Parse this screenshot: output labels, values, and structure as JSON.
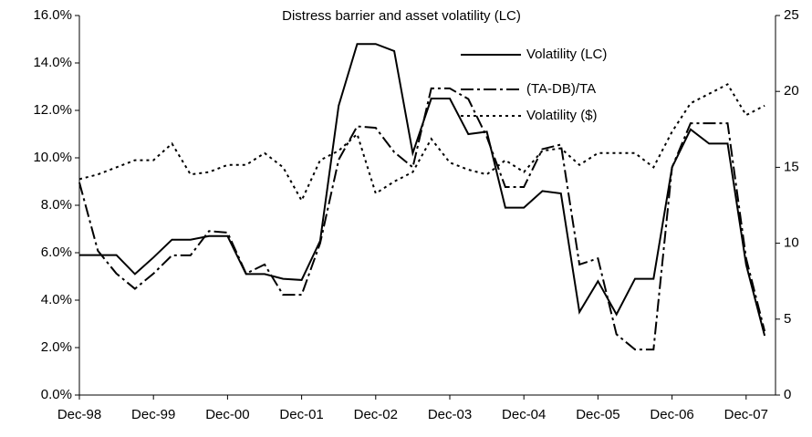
{
  "chart_data": {
    "type": "line",
    "title": "Distress barrier and asset volatility (LC)",
    "categories": [
      "Dec-98",
      null,
      null,
      null,
      "Dec-99",
      null,
      null,
      null,
      "Dec-00",
      null,
      null,
      null,
      "Dec-01",
      null,
      null,
      null,
      "Dec-02",
      null,
      null,
      null,
      "Dec-03",
      null,
      null,
      null,
      "Dec-04",
      null,
      null,
      null,
      "Dec-05",
      null,
      null,
      null,
      "Dec-06",
      null,
      null,
      null,
      "Dec-07",
      null
    ],
    "series": [
      {
        "name": "Volatility (LC)",
        "color": "#000000",
        "line_style": "solid",
        "axis": "y",
        "values": [
          5.9,
          5.9,
          5.9,
          5.1,
          5.8,
          6.55,
          6.55,
          6.7,
          6.7,
          5.1,
          5.1,
          4.9,
          4.85,
          6.5,
          12.2,
          14.8,
          14.8,
          14.5,
          10.2,
          12.5,
          12.5,
          11.0,
          11.1,
          7.9,
          7.9,
          8.6,
          8.5,
          3.5,
          4.8,
          3.4,
          4.9,
          4.9,
          9.6,
          11.2,
          10.6,
          10.6,
          5.5,
          2.5
        ]
      },
      {
        "name": "(TA-DB)/TA",
        "color": "#000000",
        "line_style": "dashdot",
        "axis": "y2",
        "values": [
          14.0,
          9.5,
          8.0,
          7.0,
          8.0,
          9.2,
          9.2,
          10.8,
          10.7,
          8.0,
          8.6,
          6.6,
          6.6,
          10.0,
          15.5,
          17.7,
          17.6,
          16.0,
          15.0,
          20.2,
          20.2,
          19.5,
          17.0,
          13.7,
          13.7,
          16.2,
          16.5,
          8.6,
          9.0,
          4.0,
          3.0,
          3.0,
          15.0,
          17.9,
          17.9,
          17.9,
          9.0,
          4.2
        ]
      },
      {
        "name": "Volatility ($)",
        "color": "#000000",
        "line_style": "dotted",
        "axis": "y",
        "values": [
          9.1,
          9.3,
          9.6,
          9.9,
          9.9,
          10.6,
          9.3,
          9.4,
          9.7,
          9.7,
          10.2,
          9.6,
          8.2,
          9.9,
          10.3,
          11.0,
          8.5,
          9.0,
          9.4,
          10.8,
          9.8,
          9.5,
          9.3,
          9.9,
          9.4,
          10.3,
          10.4,
          9.7,
          10.2,
          10.2,
          10.2,
          9.6,
          11.1,
          12.3,
          12.7,
          13.1,
          11.8,
          12.2
        ]
      }
    ],
    "ylim": [
      0,
      16
    ],
    "yticks": [
      {
        "value": 0,
        "label": "0.0%"
      },
      {
        "value": 2,
        "label": "2.0%"
      },
      {
        "value": 4,
        "label": "4.0%"
      },
      {
        "value": 6,
        "label": "6.0%"
      },
      {
        "value": 8,
        "label": "8.0%"
      },
      {
        "value": 10,
        "label": "10.0%"
      },
      {
        "value": 12,
        "label": "12.0%"
      },
      {
        "value": 14,
        "label": "14.0%"
      },
      {
        "value": 16,
        "label": "16.0%"
      }
    ],
    "y2lim": [
      0,
      25
    ],
    "y2ticks": [
      0,
      5,
      10,
      15,
      20,
      25
    ],
    "grid": false,
    "legend": "top-right"
  }
}
